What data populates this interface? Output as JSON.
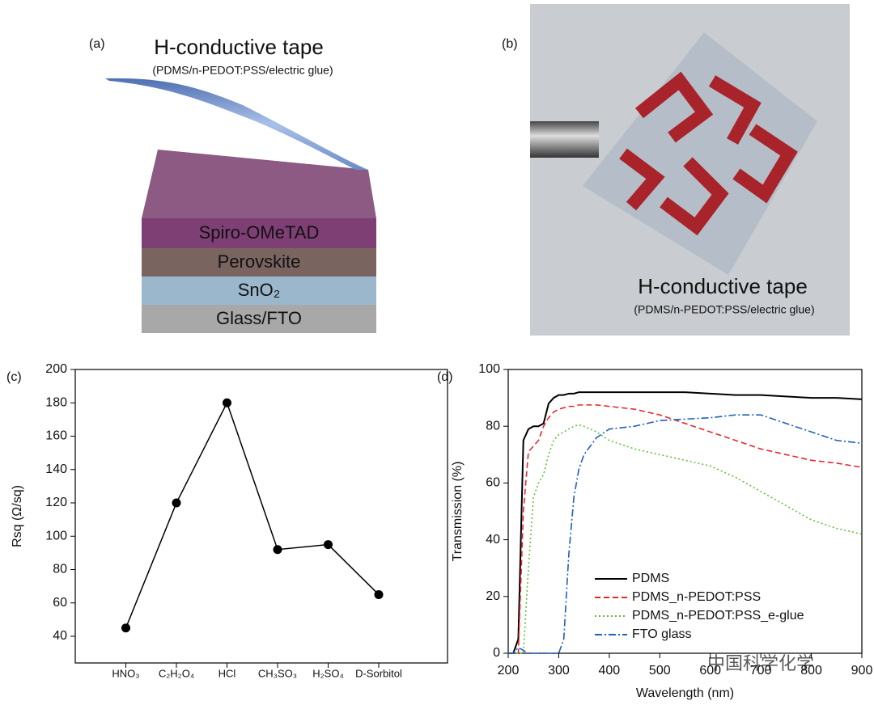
{
  "panels": {
    "a": {
      "label": "(a)",
      "title": "H-conductive tape",
      "subtitle": "(PDMS/n-PEDOT:PSS/electric glue)",
      "layers": [
        "Spiro-OMeTAD",
        "Perovskite",
        "SnO₂",
        "Glass/FTO"
      ]
    },
    "b": {
      "label": "(b)",
      "title": "H-conductive tape",
      "subtitle": "(PDMS/n-PEDOT:PSS/electric glue)"
    },
    "c": {
      "label": "(c)"
    },
    "d": {
      "label": "(d)"
    }
  },
  "watermark": "中国科学化学",
  "chart_data": [
    {
      "type": "line",
      "y_label": "Rsq (Ω/sq)",
      "categories": [
        "HNO₃",
        "C₂H₂O₄",
        "HCl",
        "CH₃SO₃",
        "H₂SO₄",
        "D-Sorbitol"
      ],
      "values": [
        45,
        120,
        180,
        92,
        95,
        65
      ],
      "color": "#000000",
      "ylim": [
        24,
        200
      ],
      "yticks": [
        40,
        60,
        80,
        100,
        120,
        140,
        160,
        180,
        200
      ]
    },
    {
      "type": "line",
      "x_label": "Wavelength (nm)",
      "y_label": "Transmission (%)",
      "x": [
        200,
        210,
        220,
        230,
        240,
        250,
        260,
        270,
        280,
        290,
        300,
        310,
        320,
        330,
        340,
        350,
        375,
        400,
        450,
        500,
        550,
        600,
        650,
        700,
        750,
        800,
        850,
        900
      ],
      "series": [
        {
          "name": "PDMS",
          "color": "#000000",
          "linestyle": "solid",
          "values": [
            0,
            0,
            5,
            75,
            79,
            80,
            80,
            81,
            88,
            90,
            91,
            91,
            91.5,
            91.5,
            92,
            92,
            92,
            92,
            92,
            92,
            92,
            91.5,
            91,
            91,
            90.5,
            90,
            90,
            89.5
          ]
        },
        {
          "name": "PDMS_n-PEDOT:PSS",
          "color": "#e8262b",
          "linestyle": "dashed",
          "values": [
            0,
            0,
            0,
            50,
            71,
            73,
            75,
            80,
            83,
            85,
            86,
            86.5,
            87,
            87,
            87.5,
            87.5,
            87.5,
            87,
            86,
            84,
            81,
            78,
            75,
            72,
            70,
            68,
            67,
            65.5
          ]
        },
        {
          "name": "PDMS_n-PEDOT:PSS_e-glue",
          "color": "#5cc43a",
          "linestyle": "dotted",
          "values": [
            0,
            0,
            0,
            0,
            30,
            55,
            60,
            63,
            70,
            75,
            77,
            78,
            79,
            80,
            80.5,
            80,
            78,
            75,
            72,
            70,
            68,
            66,
            62,
            57,
            52,
            47,
            44,
            42
          ]
        },
        {
          "name": "FTO glass",
          "color": "#1f5fbf",
          "linestyle": "dashdot",
          "values": [
            0,
            0,
            2,
            1,
            0,
            0,
            0,
            0,
            0,
            0,
            0,
            5,
            35,
            55,
            65,
            70,
            76,
            79,
            80,
            82,
            82.5,
            83,
            84,
            84,
            81,
            78,
            75,
            74
          ]
        }
      ],
      "xlim": [
        200,
        900
      ],
      "xticks": [
        200,
        300,
        400,
        500,
        600,
        700,
        800,
        900
      ],
      "ylim": [
        0,
        100
      ],
      "yticks": [
        0,
        20,
        40,
        60,
        80,
        100
      ],
      "legend": "lower right"
    }
  ]
}
